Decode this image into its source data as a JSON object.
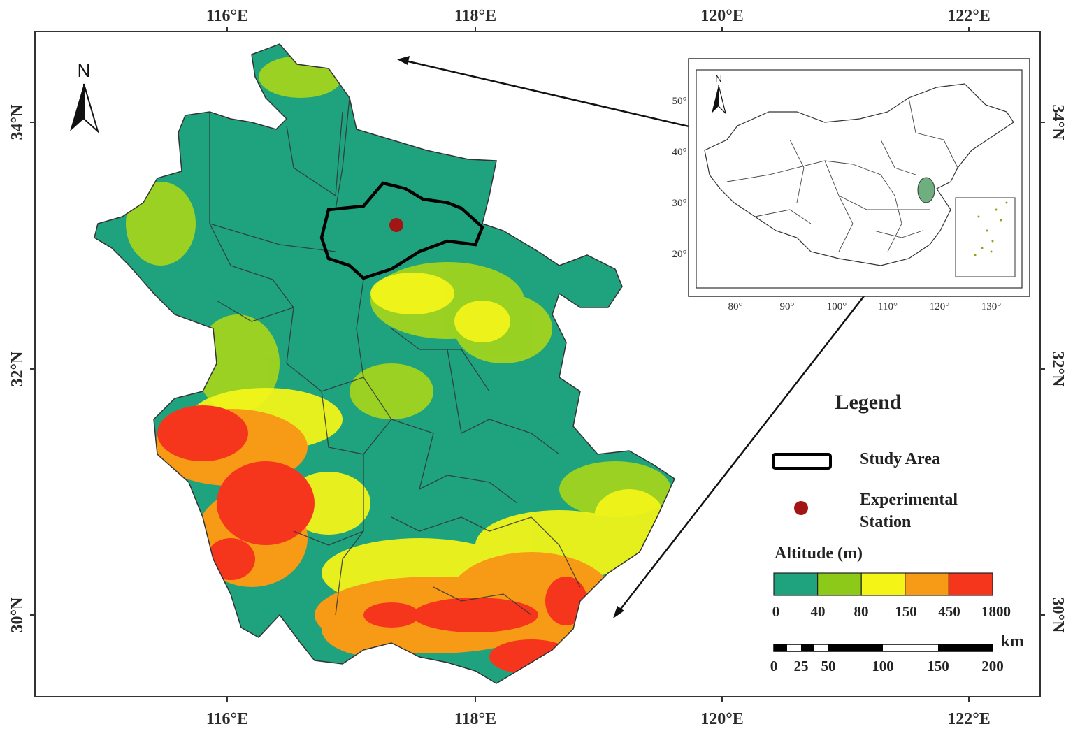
{
  "map": {
    "lon_labels": [
      "116°E",
      "118°E",
      "120°E",
      "122°E"
    ],
    "lat_labels": [
      "34°N",
      "32°N",
      "30°N"
    ],
    "north_label": "N"
  },
  "inset": {
    "north_label": "N",
    "lon_labels": [
      "80°",
      "90°",
      "100°",
      "110°",
      "120°",
      "130°"
    ],
    "lat_labels": [
      "50°",
      "40°",
      "30°",
      "20°"
    ]
  },
  "legend": {
    "title": "Legend",
    "study_area": "Study Area",
    "station_line1": "Experimental",
    "station_line2": "Station",
    "altitude_title": "Altitude (m)",
    "altitude_breaks": [
      "0",
      "40",
      "80",
      "150",
      "450",
      "1800"
    ],
    "altitude_colors": [
      "#1fa37f",
      "#8cc919",
      "#f4f416",
      "#f79a16",
      "#f5361c"
    ],
    "scale_unit": "km",
    "scale_labels": [
      "0",
      "25",
      "50",
      "100",
      "150",
      "200"
    ]
  },
  "colors": {
    "station": "#a31414",
    "inset_province": "#6fae7f",
    "base": "#1fa37f"
  }
}
